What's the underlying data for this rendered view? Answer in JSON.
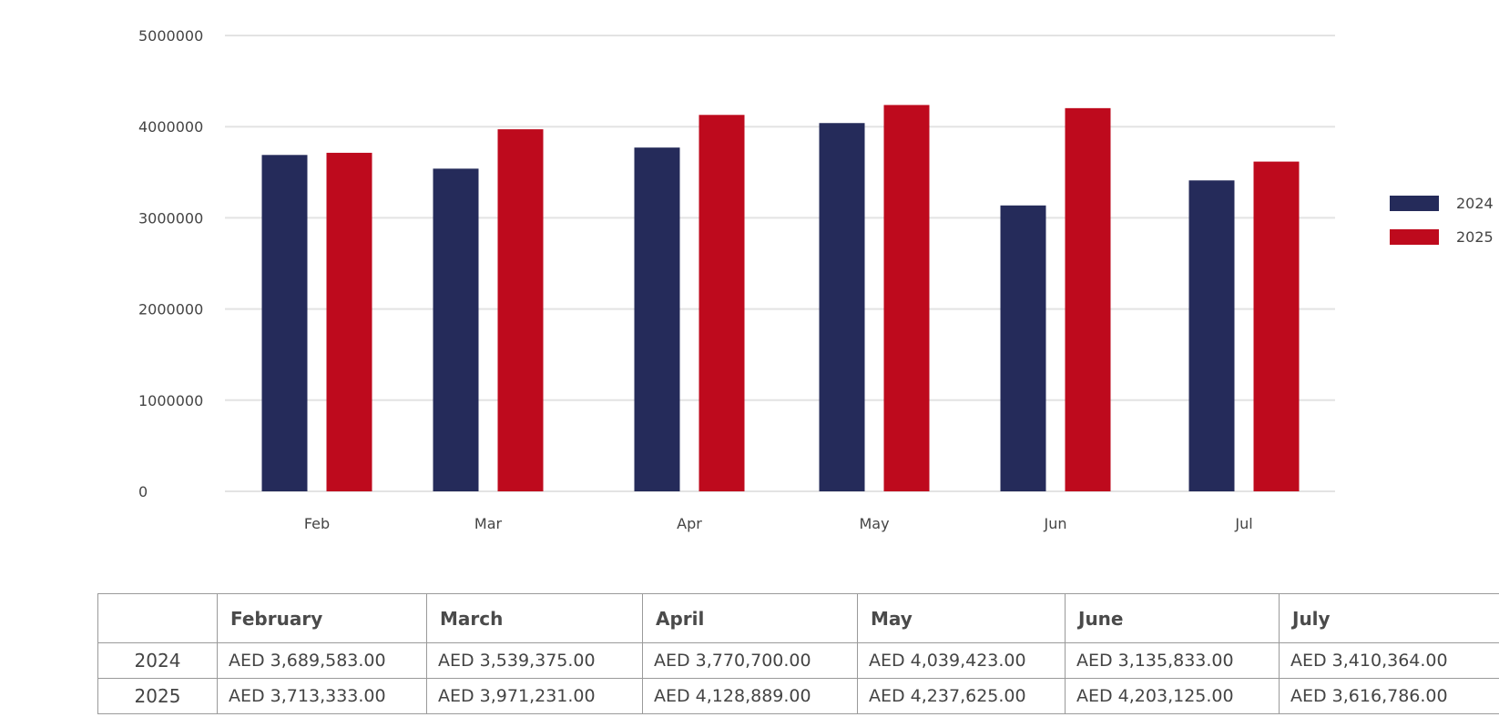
{
  "chart_data": {
    "type": "bar",
    "categories": [
      "Feb",
      "Mar",
      "Apr",
      "May",
      "Jun",
      "Jul"
    ],
    "series": [
      {
        "name": "2024",
        "color": "#252b5a",
        "values": [
          3689583,
          3539375,
          3770700,
          4039423,
          3135833,
          3410364
        ]
      },
      {
        "name": "2025",
        "color": "#be0a1d",
        "values": [
          3713333,
          3971231,
          4128889,
          4237625,
          4203125,
          3616786
        ]
      }
    ],
    "yticks": [
      "0",
      "1000000",
      "2000000",
      "3000000",
      "4000000",
      "5000000"
    ],
    "ylim": [
      0,
      5000000
    ],
    "grid": true,
    "legend": "right"
  },
  "table": {
    "headers": [
      "",
      "February",
      "March",
      "April",
      "May",
      "June",
      "July"
    ],
    "rows": [
      {
        "label": "2024",
        "cells": [
          "AED 3,689,583.00",
          "AED 3,539,375.00",
          "AED 3,770,700.00",
          "AED 4,039,423.00",
          "AED 3,135,833.00",
          "AED 3,410,364.00"
        ]
      },
      {
        "label": "2025",
        "cells": [
          "AED 3,713,333.00",
          "AED 3,971,231.00",
          "AED 4,128,889.00",
          "AED 4,237,625.00",
          "AED 4,203,125.00",
          "AED 3,616,786.00"
        ]
      }
    ]
  }
}
